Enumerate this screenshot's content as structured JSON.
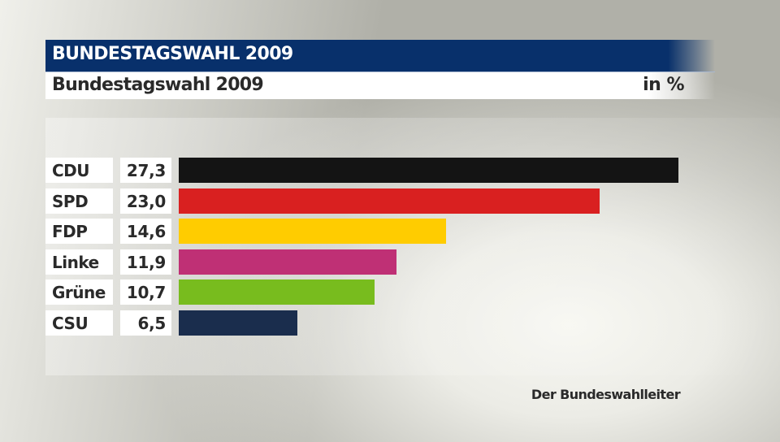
{
  "header": {
    "title": "BUNDESTAGSWAHL 2009",
    "color": "#08306b"
  },
  "subtitle": {
    "title": "Bundestagswahl 2009",
    "unit": "in %"
  },
  "source": "Der Bundeswahlleiter",
  "rows": [
    {
      "label": "CDU",
      "value": "27,3",
      "color": "#141414"
    },
    {
      "label": "SPD",
      "value": "23,0",
      "color": "#d92020"
    },
    {
      "label": "FDP",
      "value": "14,6",
      "color": "#ffcc00"
    },
    {
      "label": "Linke",
      "value": "11,9",
      "color": "#bf3075"
    },
    {
      "label": "Grüne",
      "value": "10,7",
      "color": "#78bc1e"
    },
    {
      "label": "CSU",
      "value": "6,5",
      "color": "#1a2d4d"
    }
  ],
  "chart_data": {
    "type": "bar",
    "orientation": "horizontal",
    "title": "BUNDESTAGSWAHL 2009",
    "subtitle": "Bundestagswahl 2009",
    "unit": "in %",
    "categories": [
      "CDU",
      "SPD",
      "FDP",
      "Linke",
      "Grüne",
      "CSU"
    ],
    "values": [
      27.3,
      23.0,
      14.6,
      11.9,
      10.7,
      6.5
    ],
    "colors": [
      "#141414",
      "#d92020",
      "#ffcc00",
      "#bf3075",
      "#78bc1e",
      "#1a2d4d"
    ],
    "xlabel": "",
    "ylabel": "",
    "grid": false,
    "legend": "none",
    "source": "Der Bundeswahlleiter"
  }
}
